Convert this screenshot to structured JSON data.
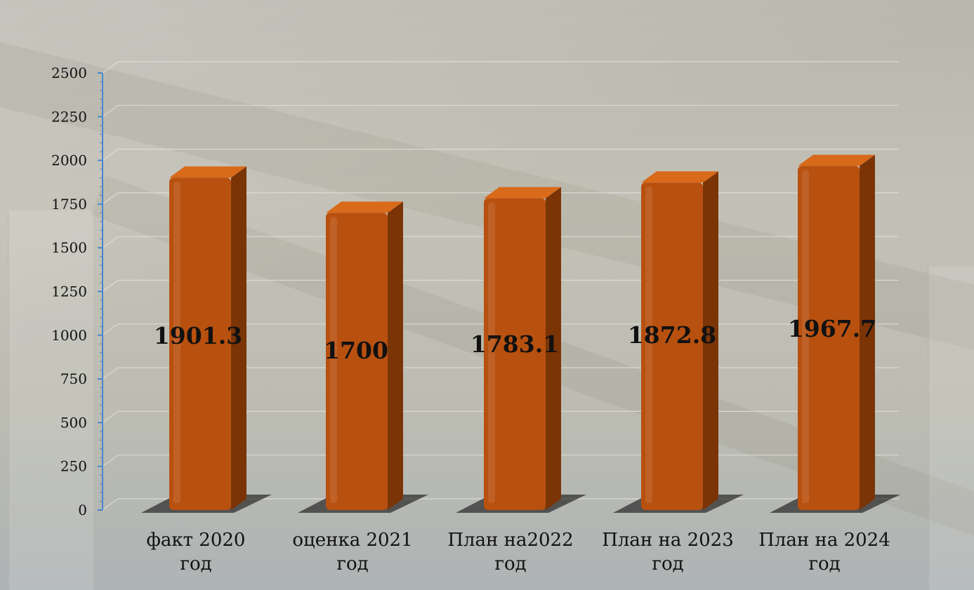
{
  "chart_data": {
    "type": "bar",
    "categories": [
      [
        "факт 2020",
        "год"
      ],
      [
        "оценка 2021",
        "год"
      ],
      [
        "План на2022",
        "год"
      ],
      [
        "План на 2023",
        "год"
      ],
      [
        "План на 2024",
        "год"
      ]
    ],
    "values": [
      1901.3,
      1700,
      1783.1,
      1872.8,
      1967.7
    ],
    "value_labels": [
      "1901.3",
      "1700",
      "1783.1",
      "1872.8",
      "1967.7"
    ],
    "yticks": [
      "0",
      "250",
      "500",
      "750",
      "1000",
      "1250",
      "1500",
      "1750",
      "2000",
      "2250",
      "2500"
    ],
    "ylim": [
      0,
      2500
    ],
    "grid": true,
    "colors": {
      "bar_front": "#b8500f",
      "bar_top": "#d86a1a",
      "bar_side": "#7a3406",
      "axis": "#4a86c8",
      "gridline": "#e6e6e0"
    }
  }
}
